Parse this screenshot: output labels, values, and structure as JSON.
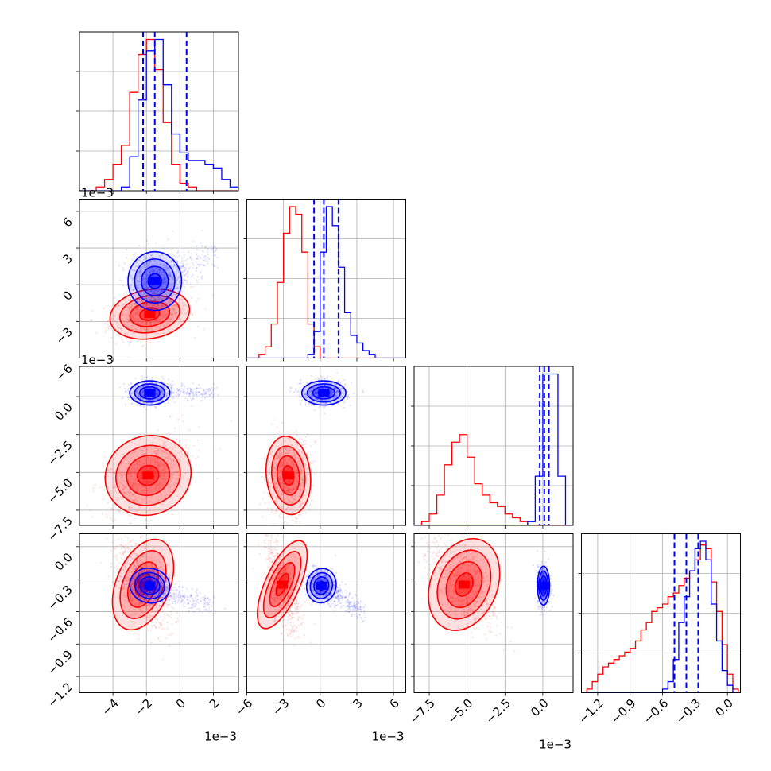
{
  "chart_data": {
    "type": "corner",
    "grid": true,
    "series_colors": {
      "blue": "#0000ff",
      "red": "#ff0000"
    },
    "parameters": [
      {
        "range": [
          -6.0,
          3.5
        ],
        "ticks": [
          -4,
          -2,
          0,
          2
        ],
        "tick_labels": [
          "−4",
          "−2",
          "0",
          "2"
        ],
        "scale_label": "1e−3"
      },
      {
        "range": [
          -6.0,
          7.0
        ],
        "ticks": [
          -6,
          -3,
          0,
          3,
          6
        ],
        "tick_labels": [
          "−6",
          "−3",
          "0",
          "3",
          "6"
        ],
        "scale_label": "1e−3"
      },
      {
        "range": [
          -8.5,
          2.0
        ],
        "ticks": [
          -7.5,
          -5.0,
          -2.5,
          0.0
        ],
        "tick_labels": [
          "−7.5",
          "−5.0",
          "−2.5",
          "0.0"
        ],
        "scale_label": "1e−3"
      },
      {
        "range": [
          -1.35,
          0.12
        ],
        "ticks": [
          -1.2,
          -0.9,
          -0.6,
          -0.3,
          0.0
        ],
        "tick_labels": [
          "−1.2",
          "−0.9",
          "−0.6",
          "−0.3",
          "0.0"
        ],
        "scale_label": ""
      }
    ],
    "diagonal_histograms": [
      {
        "bin_edges": [
          -6.0,
          -5.5,
          -5.0,
          -4.5,
          -4.0,
          -3.5,
          -3.0,
          -2.5,
          -2.0,
          -1.5,
          -1.0,
          -0.5,
          0.0,
          0.5,
          1.0,
          1.5,
          2.0,
          2.5,
          3.0,
          3.5
        ],
        "blue": [
          0,
          0,
          0,
          0,
          0,
          1,
          9,
          24,
          37,
          40,
          28,
          15,
          10,
          8,
          8,
          7,
          6,
          3,
          1
        ],
        "red": [
          0,
          0,
          1,
          3,
          7,
          12,
          26,
          36,
          40,
          32,
          18,
          7,
          2,
          1,
          0,
          0,
          0,
          0,
          0
        ],
        "quantiles_blue": [
          -2.2,
          -1.5,
          0.4
        ]
      },
      {
        "bin_edges": [
          -6.0,
          -5.5,
          -5.0,
          -4.5,
          -4.0,
          -3.5,
          -3.0,
          -2.5,
          -2.0,
          -1.5,
          -1.0,
          -0.5,
          0.0,
          0.5,
          1.0,
          1.5,
          2.0,
          2.5,
          3.0,
          3.5,
          4.0,
          4.5,
          5.0,
          5.5,
          6.0,
          6.5,
          7.0
        ],
        "blue": [
          0,
          0,
          0,
          0,
          0,
          0,
          0,
          0,
          0,
          0,
          1,
          7,
          28,
          40,
          35,
          24,
          12,
          6,
          4,
          2,
          1,
          0,
          0,
          0,
          0,
          0
        ],
        "red": [
          0,
          0,
          1,
          3,
          9,
          20,
          33,
          40,
          38,
          28,
          9,
          3,
          0,
          0,
          0,
          0,
          0,
          0,
          0,
          0,
          0,
          0,
          0,
          0,
          0,
          0
        ],
        "quantiles_blue": [
          -0.5,
          0.3,
          1.5
        ]
      },
      {
        "bin_edges": [
          -8.5,
          -8.0,
          -7.5,
          -7.0,
          -6.5,
          -6.0,
          -5.5,
          -5.0,
          -4.5,
          -4.0,
          -3.5,
          -3.0,
          -2.5,
          -2.0,
          -1.5,
          -1.0,
          -0.5,
          0.0,
          0.5,
          1.0,
          1.5,
          2.0
        ],
        "blue": [
          0,
          0,
          0,
          0,
          0,
          0,
          0,
          0,
          0,
          0,
          0,
          0,
          0,
          0,
          0,
          1,
          13,
          40,
          40,
          13,
          0
        ],
        "red": [
          0,
          1,
          3,
          8,
          16,
          22,
          24,
          18,
          11,
          8,
          6,
          5,
          3,
          2,
          1,
          0,
          0,
          0,
          0,
          0,
          0
        ],
        "quantiles_blue": [
          -0.2,
          0.1,
          0.4
        ]
      },
      {
        "bin_edges": [
          -1.35,
          -1.3,
          -1.25,
          -1.2,
          -1.15,
          -1.1,
          -1.05,
          -1.0,
          -0.95,
          -0.9,
          -0.85,
          -0.8,
          -0.75,
          -0.7,
          -0.65,
          -0.6,
          -0.55,
          -0.5,
          -0.45,
          -0.4,
          -0.35,
          -0.3,
          -0.25,
          -0.2,
          -0.15,
          -0.1,
          -0.05,
          0.0,
          0.05,
          0.1
        ],
        "blue": [
          0,
          0,
          0,
          0,
          0,
          0,
          0,
          0,
          0,
          0,
          0,
          0,
          0,
          0,
          0,
          1,
          3,
          9,
          19,
          26,
          33,
          39,
          41,
          36,
          24,
          14,
          6,
          2,
          0
        ],
        "red": [
          0,
          1,
          3,
          5,
          7,
          8,
          9,
          10,
          11,
          12,
          14,
          17,
          19,
          22,
          23,
          24,
          26,
          27,
          29,
          31,
          33,
          36,
          40,
          39,
          30,
          22,
          13,
          5,
          1
        ],
        "quantiles_blue": [
          -0.49,
          -0.38,
          -0.27
        ]
      }
    ],
    "scatter_clouds": [
      {
        "row": 1,
        "col": 0,
        "blue": {
          "center": [
            -1.5,
            0.3
          ],
          "sigma": [
            0.8,
            1.2
          ],
          "rho": 0.0,
          "tail_to": [
            1.8,
            2.5
          ]
        },
        "red": {
          "center": [
            -1.8,
            -2.4
          ],
          "sigma": [
            1.2,
            1.0
          ],
          "rho": 0.25
        }
      },
      {
        "row": 2,
        "col": 0,
        "blue": {
          "center": [
            -1.8,
            0.25
          ],
          "sigma": [
            0.6,
            0.4
          ],
          "rho": 0.0,
          "tail_to": [
            2.0,
            0.3
          ]
        },
        "red": {
          "center": [
            -1.9,
            -5.2
          ],
          "sigma": [
            1.3,
            1.3
          ],
          "rho": 0.55
        }
      },
      {
        "row": 2,
        "col": 1,
        "blue": {
          "center": [
            0.3,
            0.25
          ],
          "sigma": [
            0.9,
            0.4
          ],
          "rho": 0.0
        },
        "red": {
          "center": [
            -2.6,
            -5.2
          ],
          "sigma": [
            0.9,
            1.3
          ],
          "rho": 0.15
        }
      },
      {
        "row": 3,
        "col": 0,
        "blue": {
          "center": [
            -1.8,
            -0.36
          ],
          "sigma": [
            0.6,
            0.08
          ],
          "rho": -0.3,
          "tail_to": [
            1.8,
            -0.55
          ]
        },
        "red": {
          "center": [
            -2.2,
            -0.35
          ],
          "sigma": [
            0.8,
            0.22
          ],
          "rho": -0.55
        }
      },
      {
        "row": 3,
        "col": 1,
        "blue": {
          "center": [
            0.1,
            -0.36
          ],
          "sigma": [
            0.6,
            0.08
          ],
          "rho": -0.3,
          "tail_to": [
            3.5,
            -0.6
          ]
        },
        "red": {
          "center": [
            -3.1,
            -0.35
          ],
          "sigma": [
            0.7,
            0.22
          ],
          "rho": -0.6
        }
      },
      {
        "row": 3,
        "col": 2,
        "blue": {
          "center": [
            0.05,
            -0.36
          ],
          "sigma": [
            0.2,
            0.09
          ],
          "rho": 0.0
        },
        "red": {
          "center": [
            -5.2,
            -0.35
          ],
          "sigma": [
            1.1,
            0.22
          ],
          "rho": -0.55
        }
      }
    ]
  }
}
